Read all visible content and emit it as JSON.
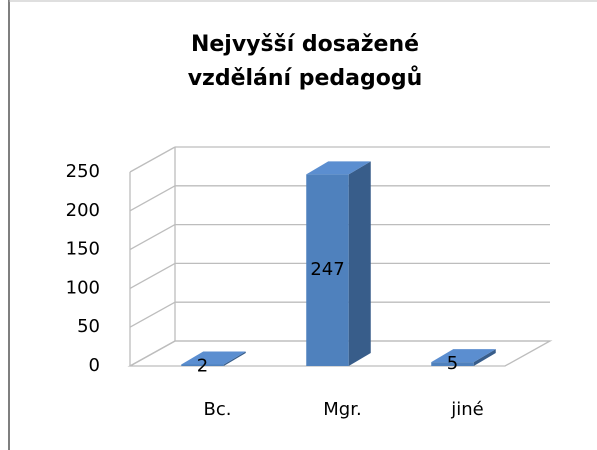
{
  "chart_data": {
    "type": "bar3d",
    "title": "Nejvyšší dosažené vzdělání pedagogů",
    "categories": [
      "Bc.",
      "Mgr.",
      "jiné"
    ],
    "values": [
      2,
      247,
      5
    ],
    "color": "#4f81bd",
    "ylim": [
      0,
      250
    ],
    "yticks": [
      0,
      50,
      100,
      150,
      200,
      250
    ],
    "grid": true
  }
}
